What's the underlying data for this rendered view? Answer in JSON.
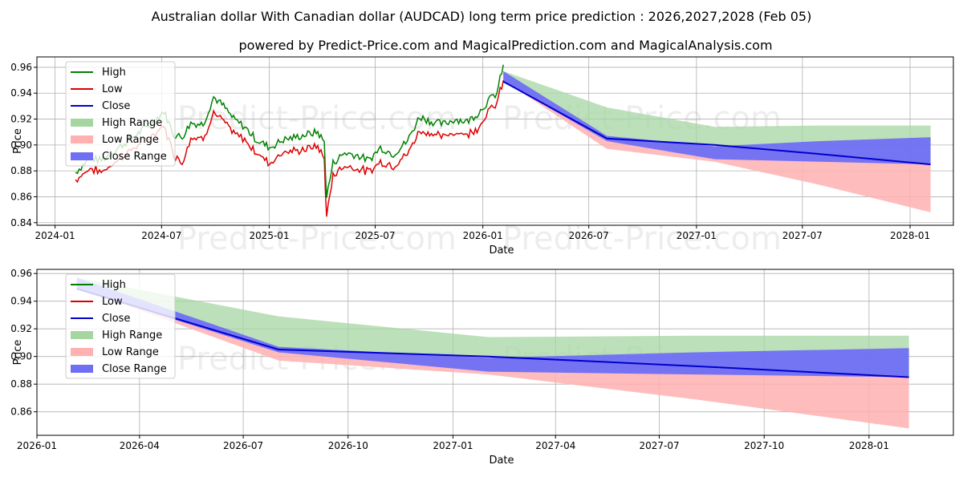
{
  "title": "Australian dollar With Canadian dollar (AUDCAD) long term price prediction : 2026,2027,2028 (Feb 05)",
  "subtitle": "powered by Predict-Price.com and MagicalPrediction.com and MagicalAnalysis.com",
  "watermark": "Predict-Price.com",
  "colors": {
    "high": "#008000",
    "low": "#dd0000",
    "close": "#0000cc",
    "high_range": "#a5d6a2",
    "low_range": "#ffb0b0",
    "close_range": "#6f6ff5"
  },
  "chart_data": [
    {
      "type": "line",
      "xlabel": "Date",
      "ylabel": "Price",
      "legend_position": "top-left",
      "grid": true,
      "x_ticks": [
        "2024-01",
        "2024-07",
        "2025-01",
        "2025-07",
        "2026-01",
        "2026-07",
        "2027-01",
        "2027-07",
        "2028-01"
      ],
      "y_ticks": [
        "0.84",
        "0.86",
        "0.88",
        "0.90",
        "0.92",
        "0.94",
        "0.96"
      ],
      "ylim": [
        0.838,
        0.968
      ],
      "xlim": [
        "2023-12-01",
        "2028-03-15"
      ],
      "legend": [
        "High",
        "Low",
        "Close",
        "High Range",
        "Low Range",
        "Close Range"
      ],
      "history": [
        [
          "2024-02-05",
          0.879,
          0.873
        ],
        [
          "2024-03-01",
          0.89,
          0.882
        ],
        [
          "2024-03-20",
          0.888,
          0.879
        ],
        [
          "2024-04-10",
          0.895,
          0.886
        ],
        [
          "2024-05-01",
          0.902,
          0.893
        ],
        [
          "2024-05-25",
          0.91,
          0.901
        ],
        [
          "2024-06-15",
          0.917,
          0.907
        ],
        [
          "2024-07-05",
          0.926,
          0.915
        ],
        [
          "2024-07-22",
          0.908,
          0.893
        ],
        [
          "2024-08-05",
          0.906,
          0.886
        ],
        [
          "2024-08-20",
          0.917,
          0.906
        ],
        [
          "2024-09-10",
          0.916,
          0.905
        ],
        [
          "2024-09-28",
          0.937,
          0.925
        ],
        [
          "2024-10-15",
          0.93,
          0.918
        ],
        [
          "2024-11-01",
          0.92,
          0.909
        ],
        [
          "2024-11-20",
          0.914,
          0.904
        ],
        [
          "2024-12-10",
          0.904,
          0.894
        ],
        [
          "2025-01-02",
          0.898,
          0.886
        ],
        [
          "2025-01-25",
          0.904,
          0.895
        ],
        [
          "2025-02-15",
          0.906,
          0.895
        ],
        [
          "2025-03-05",
          0.908,
          0.897
        ],
        [
          "2025-03-25",
          0.91,
          0.899
        ],
        [
          "2025-04-05",
          0.902,
          0.889
        ],
        [
          "2025-04-09",
          0.86,
          0.844
        ],
        [
          "2025-04-20",
          0.886,
          0.877
        ],
        [
          "2025-05-10",
          0.894,
          0.884
        ],
        [
          "2025-06-01",
          0.892,
          0.882
        ],
        [
          "2025-06-20",
          0.888,
          0.879
        ],
        [
          "2025-07-10",
          0.898,
          0.887
        ],
        [
          "2025-08-01",
          0.893,
          0.884
        ],
        [
          "2025-08-25",
          0.903,
          0.893
        ],
        [
          "2025-09-15",
          0.922,
          0.911
        ],
        [
          "2025-10-05",
          0.918,
          0.909
        ],
        [
          "2025-10-25",
          0.916,
          0.906
        ],
        [
          "2025-11-15",
          0.92,
          0.91
        ],
        [
          "2025-12-05",
          0.918,
          0.908
        ],
        [
          "2025-12-25",
          0.925,
          0.914
        ],
        [
          "2026-01-10",
          0.934,
          0.926
        ],
        [
          "2026-01-25",
          0.94,
          0.932
        ],
        [
          "2026-02-05",
          0.962,
          0.95
        ]
      ],
      "forecast": {
        "dates": [
          "2026-02-05",
          "2026-08-01",
          "2027-02-01",
          "2027-08-01",
          "2028-02-05"
        ],
        "high": [
          0.957,
          0.929,
          0.914,
          0.915,
          0.915
        ],
        "low": [
          0.95,
          0.897,
          0.887,
          0.869,
          0.848
        ],
        "close_upper": [
          0.957,
          0.907,
          0.899,
          0.903,
          0.906
        ],
        "close_lower": [
          0.949,
          0.903,
          0.889,
          0.887,
          0.885
        ],
        "close": [
          0.949,
          0.905,
          0.9,
          0.893,
          0.885
        ]
      }
    },
    {
      "type": "area",
      "xlabel": "Date",
      "ylabel": "Price",
      "legend_position": "top-left",
      "grid": true,
      "x_ticks": [
        "2026-01",
        "2026-04",
        "2026-07",
        "2026-10",
        "2027-01",
        "2027-04",
        "2027-07",
        "2027-10",
        "2028-01"
      ],
      "y_ticks": [
        "0.86",
        "0.88",
        "0.90",
        "0.92",
        "0.94",
        "0.96"
      ],
      "ylim": [
        0.843,
        0.963
      ],
      "xlim": [
        "2026-01-01",
        "2028-03-15"
      ],
      "legend": [
        "High",
        "Low",
        "Close",
        "High Range",
        "Low Range",
        "Close Range"
      ]
    }
  ]
}
